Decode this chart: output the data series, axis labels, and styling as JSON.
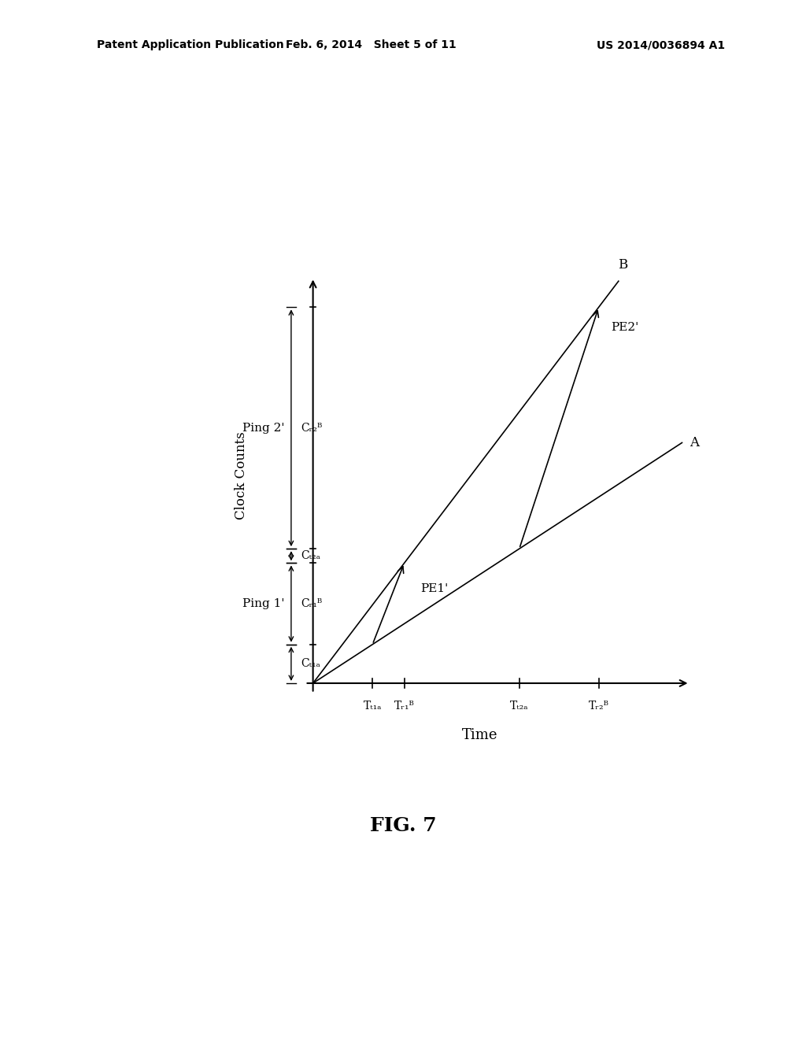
{
  "background_color": "#ffffff",
  "header_left": "Patent Application Publication",
  "header_mid": "Feb. 6, 2014   Sheet 5 of 11",
  "header_right": "US 2014/0036894 A1",
  "fig_label": "FIG. 7",
  "ylabel": "Clock Counts",
  "xlabel": "Time",
  "line_A_label": "A",
  "line_B_label": "B",
  "pe1_label": "PE1'",
  "pe2_label": "PE2'",
  "ping1_label": "Ping 1'",
  "ping2_label": "Ping 2'",
  "Ct1A_label": "Cₜ₁ₐ",
  "Cr1B_label": "Cᵣ₁ᴮ",
  "Ct2A_label": "Cₜ₂ₐ",
  "Cr2B_label": "Cᵣ₂ᴮ",
  "Tt1A_label": "Tₜ₁ₐ",
  "Tr1B_label": "Tᵣ₁ᴮ",
  "Tt2A_label": "Tₜ₂ₐ",
  "Tr2B_label": "Tᵣ₂ᴮ",
  "sA": 0.52,
  "sB": 1.05,
  "Tt1A": 0.15,
  "Tr1B": 0.23,
  "Tt2A": 0.52,
  "Tr2B": 0.72,
  "xmax": 0.95,
  "ymax": 0.95
}
